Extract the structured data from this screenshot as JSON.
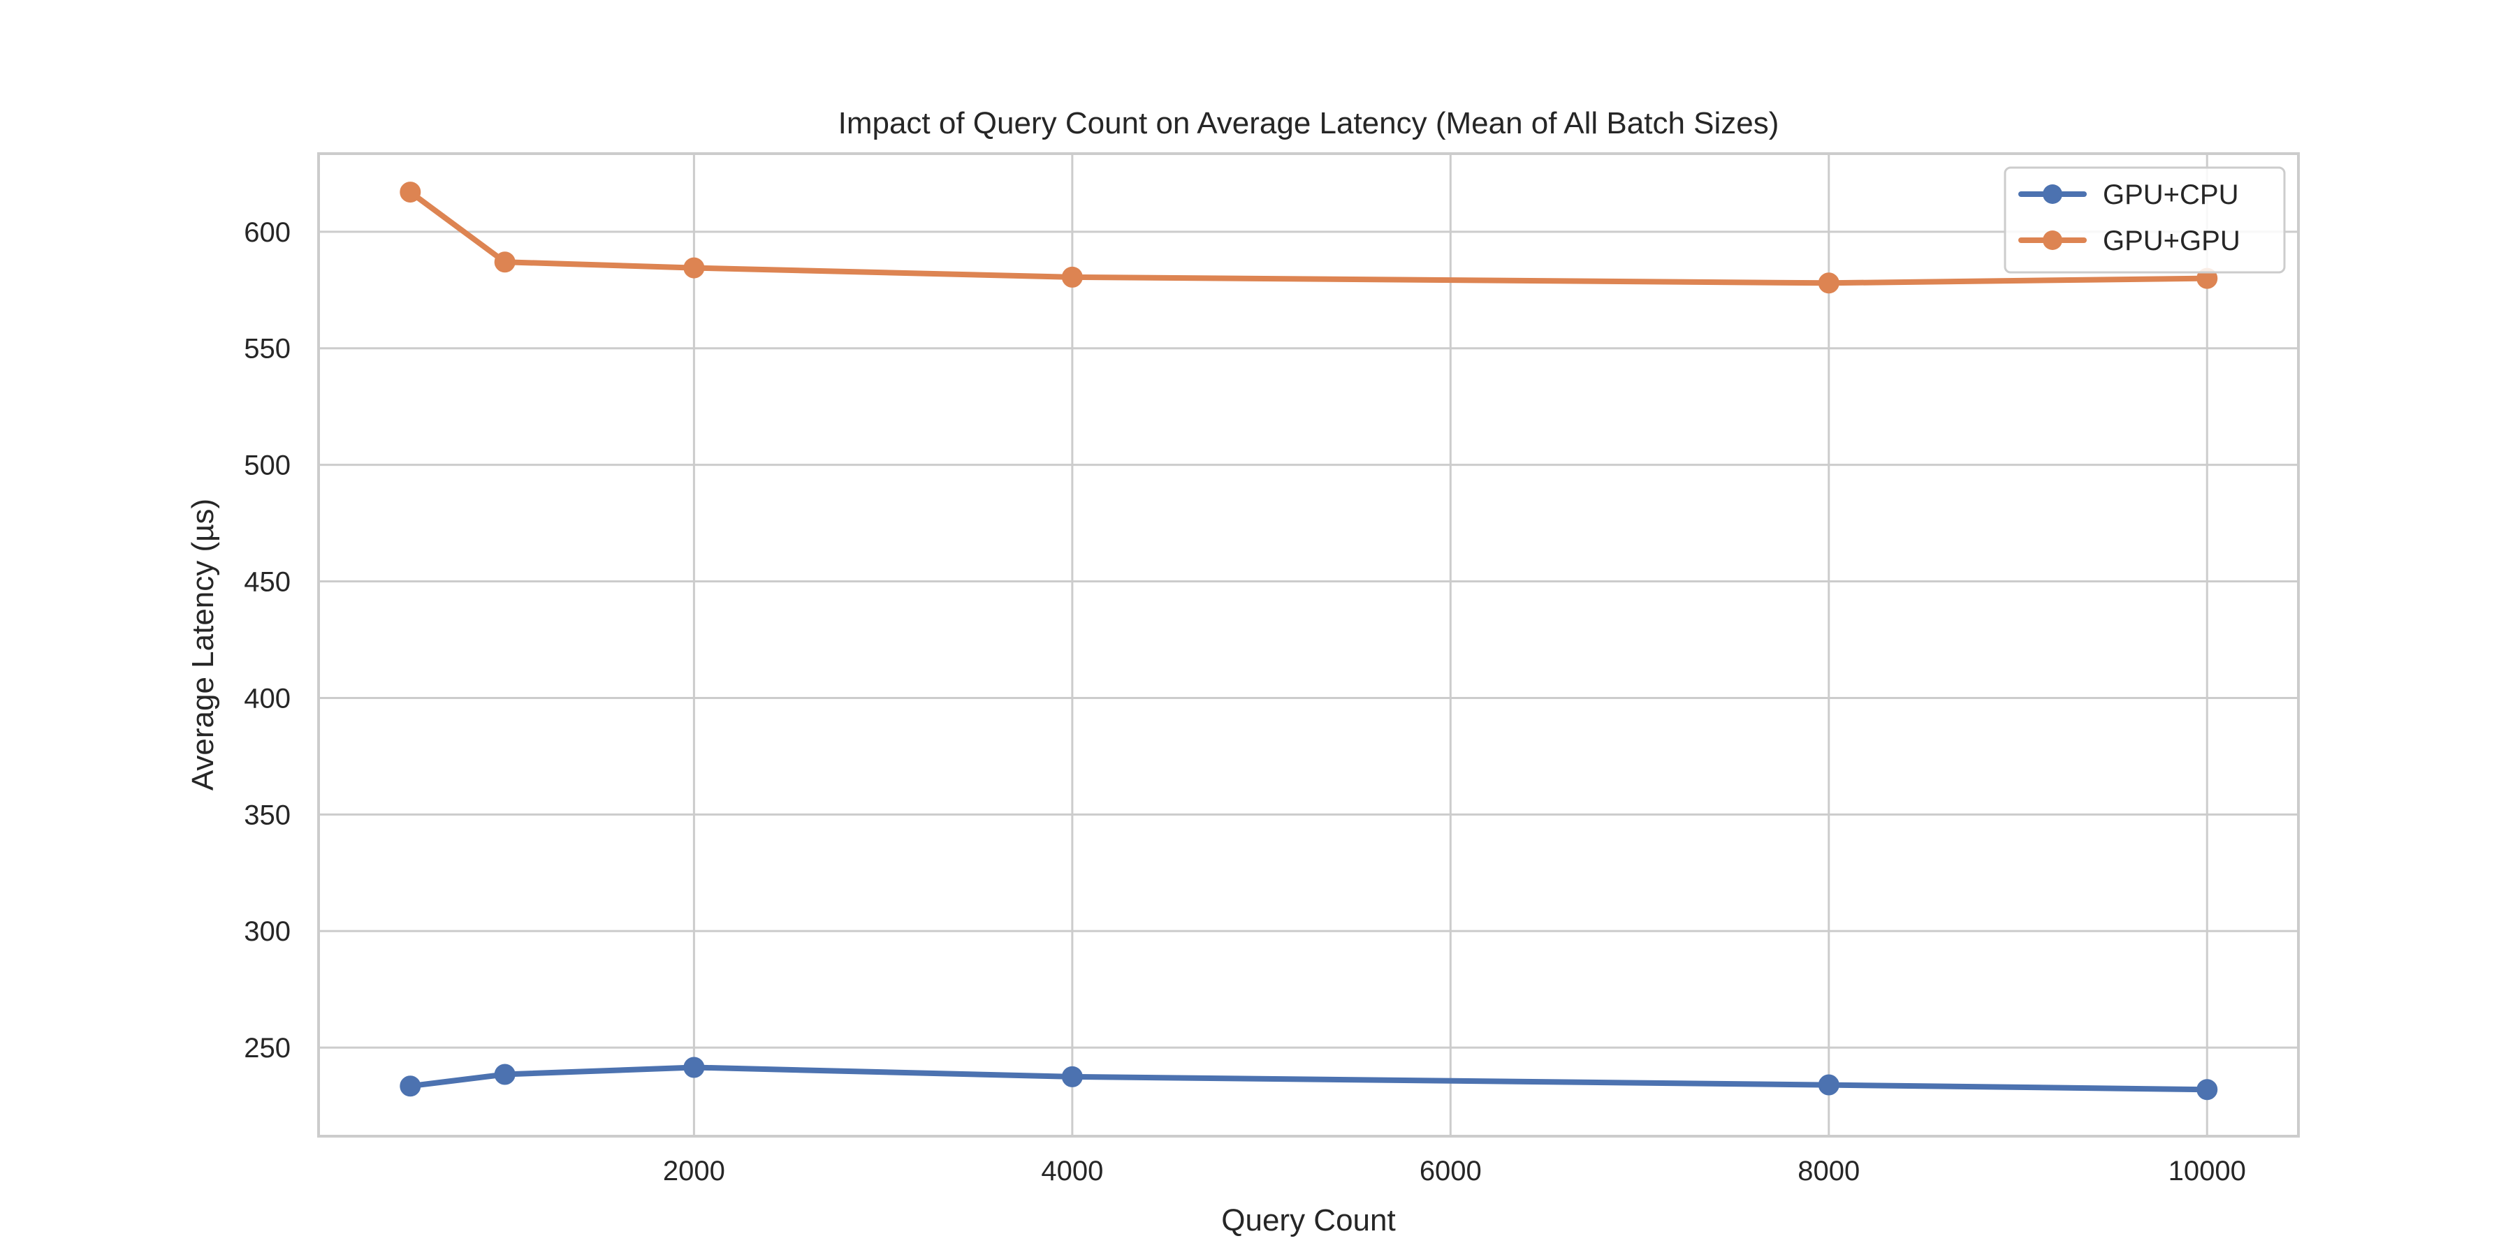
{
  "chart_data": {
    "type": "line",
    "title": "Impact of Query Count on Average Latency (Mean of All Batch Sizes)",
    "xlabel": "Query Count",
    "ylabel": "Average Latency (µs)",
    "x": [
      500,
      1000,
      2000,
      4000,
      8000,
      10000
    ],
    "series": [
      {
        "name": "GPU+CPU",
        "color": "#4c72b0",
        "values": [
          233.5,
          238.5,
          241.5,
          237.5,
          234,
          232
        ]
      },
      {
        "name": "GPU+GPU",
        "color": "#dd8452",
        "values": [
          617,
          587,
          584.5,
          580.5,
          578,
          580
        ]
      }
    ],
    "xlim": [
      15,
      10483
    ],
    "ylim": [
      212,
      633.5
    ],
    "xticks": [
      2000,
      4000,
      6000,
      8000,
      10000
    ],
    "yticks": [
      250,
      300,
      350,
      400,
      450,
      500,
      550,
      600
    ],
    "xtick_labels": [
      "2000",
      "4000",
      "6000",
      "8000",
      "10000"
    ],
    "ytick_labels": [
      "250",
      "300",
      "350",
      "400",
      "450",
      "500",
      "550",
      "600"
    ],
    "grid": true,
    "legend_position": "top-right",
    "grid_color": "#cccccc",
    "frame_color": "#cccccc"
  }
}
